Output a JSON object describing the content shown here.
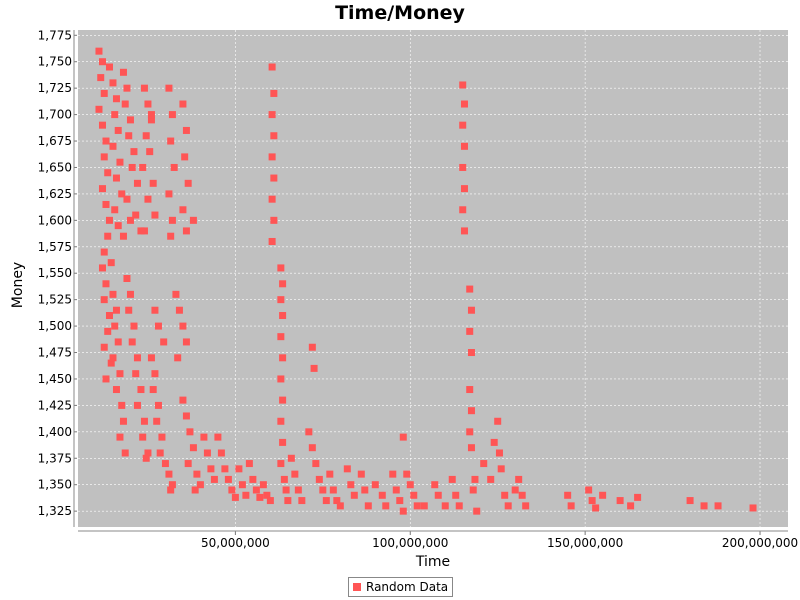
{
  "chart_data": {
    "type": "scatter",
    "title": "Time/Money",
    "xlabel": "Time",
    "ylabel": "Money",
    "xlim": [
      5000000,
      208000000
    ],
    "ylim": [
      1310,
      1780
    ],
    "x_ticks": [
      50000000,
      100000000,
      150000000,
      200000000
    ],
    "x_tick_labels": [
      "50,000,000",
      "100,000,000",
      "150,000,000",
      "200,000,000"
    ],
    "y_ticks": [
      1325,
      1350,
      1375,
      1400,
      1425,
      1450,
      1475,
      1500,
      1525,
      1550,
      1575,
      1600,
      1625,
      1650,
      1675,
      1700,
      1725,
      1750,
      1775
    ],
    "y_tick_labels": [
      "1,325",
      "1,350",
      "1,375",
      "1,400",
      "1,425",
      "1,450",
      "1,475",
      "1,500",
      "1,525",
      "1,550",
      "1,575",
      "1,600",
      "1,625",
      "1,650",
      "1,675",
      "1,700",
      "1,725",
      "1,750",
      "1,775"
    ],
    "grid": true,
    "legend_position": "bottom-center",
    "plot_background": "#c0c0c0",
    "series": [
      {
        "name": "Random Data",
        "color": "#ff5555",
        "points": [
          [
            11000000,
            1760
          ],
          [
            12000000,
            1750
          ],
          [
            11500000,
            1735
          ],
          [
            12500000,
            1720
          ],
          [
            11000000,
            1705
          ],
          [
            12000000,
            1690
          ],
          [
            13000000,
            1675
          ],
          [
            12500000,
            1660
          ],
          [
            13500000,
            1645
          ],
          [
            12000000,
            1630
          ],
          [
            13000000,
            1615
          ],
          [
            14000000,
            1600
          ],
          [
            13500000,
            1585
          ],
          [
            12500000,
            1570
          ],
          [
            14500000,
            1560
          ],
          [
            14000000,
            1745
          ],
          [
            15000000,
            1730
          ],
          [
            16000000,
            1715
          ],
          [
            15500000,
            1700
          ],
          [
            16500000,
            1685
          ],
          [
            15000000,
            1670
          ],
          [
            17000000,
            1655
          ],
          [
            16000000,
            1640
          ],
          [
            17500000,
            1625
          ],
          [
            15500000,
            1610
          ],
          [
            16500000,
            1595
          ],
          [
            18000000,
            1585
          ],
          [
            18000000,
            1740
          ],
          [
            19000000,
            1725
          ],
          [
            18500000,
            1710
          ],
          [
            20000000,
            1695
          ],
          [
            19500000,
            1680
          ],
          [
            21000000,
            1665
          ],
          [
            20500000,
            1650
          ],
          [
            22000000,
            1635
          ],
          [
            19000000,
            1620
          ],
          [
            21500000,
            1605
          ],
          [
            23000000,
            1590
          ],
          [
            20000000,
            1600
          ],
          [
            24000000,
            1725
          ],
          [
            25000000,
            1710
          ],
          [
            26000000,
            1695
          ],
          [
            24500000,
            1680
          ],
          [
            25500000,
            1665
          ],
          [
            23500000,
            1650
          ],
          [
            26500000,
            1635
          ],
          [
            25000000,
            1620
          ],
          [
            27000000,
            1605
          ],
          [
            24000000,
            1590
          ],
          [
            26000000,
            1700
          ],
          [
            31000000,
            1725
          ],
          [
            32000000,
            1700
          ],
          [
            31500000,
            1675
          ],
          [
            32500000,
            1650
          ],
          [
            31000000,
            1625
          ],
          [
            32000000,
            1600
          ],
          [
            31500000,
            1585
          ],
          [
            35000000,
            1710
          ],
          [
            36000000,
            1685
          ],
          [
            35500000,
            1660
          ],
          [
            36500000,
            1635
          ],
          [
            35000000,
            1610
          ],
          [
            36000000,
            1590
          ],
          [
            38000000,
            1600
          ],
          [
            60500000,
            1745
          ],
          [
            61000000,
            1720
          ],
          [
            60500000,
            1700
          ],
          [
            61000000,
            1680
          ],
          [
            60500000,
            1660
          ],
          [
            61000000,
            1640
          ],
          [
            60500000,
            1620
          ],
          [
            61000000,
            1600
          ],
          [
            60500000,
            1580
          ],
          [
            115000000,
            1728
          ],
          [
            115500000,
            1710
          ],
          [
            115000000,
            1690
          ],
          [
            115500000,
            1670
          ],
          [
            115000000,
            1650
          ],
          [
            115500000,
            1630
          ],
          [
            115000000,
            1610
          ],
          [
            115500000,
            1590
          ],
          [
            12000000,
            1555
          ],
          [
            13000000,
            1540
          ],
          [
            12500000,
            1525
          ],
          [
            14000000,
            1510
          ],
          [
            13500000,
            1495
          ],
          [
            12500000,
            1480
          ],
          [
            14500000,
            1465
          ],
          [
            13000000,
            1450
          ],
          [
            15000000,
            1530
          ],
          [
            16000000,
            1515
          ],
          [
            15500000,
            1500
          ],
          [
            16500000,
            1485
          ],
          [
            15000000,
            1470
          ],
          [
            17000000,
            1455
          ],
          [
            16000000,
            1440
          ],
          [
            17500000,
            1425
          ],
          [
            18000000,
            1410
          ],
          [
            17000000,
            1395
          ],
          [
            18500000,
            1380
          ],
          [
            19000000,
            1545
          ],
          [
            20000000,
            1530
          ],
          [
            19500000,
            1515
          ],
          [
            21000000,
            1500
          ],
          [
            20500000,
            1485
          ],
          [
            22000000,
            1470
          ],
          [
            21500000,
            1455
          ],
          [
            23000000,
            1440
          ],
          [
            22000000,
            1425
          ],
          [
            24000000,
            1410
          ],
          [
            23500000,
            1395
          ],
          [
            25000000,
            1380
          ],
          [
            24500000,
            1375
          ],
          [
            26000000,
            1470
          ],
          [
            27000000,
            1455
          ],
          [
            26500000,
            1440
          ],
          [
            28000000,
            1425
          ],
          [
            27500000,
            1410
          ],
          [
            29000000,
            1395
          ],
          [
            28500000,
            1380
          ],
          [
            30000000,
            1370
          ],
          [
            31000000,
            1360
          ],
          [
            32000000,
            1350
          ],
          [
            31500000,
            1345
          ],
          [
            27000000,
            1515
          ],
          [
            28000000,
            1500
          ],
          [
            29500000,
            1485
          ],
          [
            33000000,
            1530
          ],
          [
            34000000,
            1515
          ],
          [
            35000000,
            1500
          ],
          [
            36000000,
            1485
          ],
          [
            33500000,
            1470
          ],
          [
            35000000,
            1430
          ],
          [
            36000000,
            1415
          ],
          [
            37000000,
            1400
          ],
          [
            38000000,
            1385
          ],
          [
            36500000,
            1370
          ],
          [
            39000000,
            1360
          ],
          [
            40000000,
            1350
          ],
          [
            38500000,
            1345
          ],
          [
            41000000,
            1395
          ],
          [
            42000000,
            1380
          ],
          [
            43000000,
            1365
          ],
          [
            44000000,
            1355
          ],
          [
            45000000,
            1395
          ],
          [
            46000000,
            1380
          ],
          [
            47000000,
            1365
          ],
          [
            48000000,
            1355
          ],
          [
            49000000,
            1345
          ],
          [
            50000000,
            1338
          ],
          [
            51000000,
            1365
          ],
          [
            52000000,
            1350
          ],
          [
            53000000,
            1340
          ],
          [
            54000000,
            1370
          ],
          [
            55000000,
            1355
          ],
          [
            56000000,
            1345
          ],
          [
            57000000,
            1338
          ],
          [
            58000000,
            1350
          ],
          [
            59000000,
            1340
          ],
          [
            60000000,
            1335
          ],
          [
            63000000,
            1555
          ],
          [
            63500000,
            1540
          ],
          [
            63000000,
            1525
          ],
          [
            63500000,
            1510
          ],
          [
            63000000,
            1490
          ],
          [
            63500000,
            1470
          ],
          [
            63000000,
            1450
          ],
          [
            63500000,
            1430
          ],
          [
            63000000,
            1410
          ],
          [
            63500000,
            1390
          ],
          [
            63000000,
            1370
          ],
          [
            64000000,
            1355
          ],
          [
            64500000,
            1345
          ],
          [
            65000000,
            1335
          ],
          [
            66000000,
            1375
          ],
          [
            67000000,
            1360
          ],
          [
            68000000,
            1345
          ],
          [
            69000000,
            1335
          ],
          [
            72000000,
            1480
          ],
          [
            72500000,
            1460
          ],
          [
            71000000,
            1400
          ],
          [
            72000000,
            1385
          ],
          [
            73000000,
            1370
          ],
          [
            74000000,
            1355
          ],
          [
            75000000,
            1345
          ],
          [
            76000000,
            1335
          ],
          [
            77000000,
            1360
          ],
          [
            78000000,
            1345
          ],
          [
            79000000,
            1335
          ],
          [
            80000000,
            1330
          ],
          [
            82000000,
            1365
          ],
          [
            83000000,
            1350
          ],
          [
            84000000,
            1340
          ],
          [
            86000000,
            1360
          ],
          [
            87000000,
            1345
          ],
          [
            88000000,
            1330
          ],
          [
            90000000,
            1350
          ],
          [
            92000000,
            1340
          ],
          [
            93000000,
            1330
          ],
          [
            95000000,
            1360
          ],
          [
            96000000,
            1345
          ],
          [
            97000000,
            1335
          ],
          [
            98000000,
            1325
          ],
          [
            99000000,
            1360
          ],
          [
            100000000,
            1350
          ],
          [
            101000000,
            1340
          ],
          [
            102000000,
            1330
          ],
          [
            98000000,
            1395
          ],
          [
            104000000,
            1330
          ],
          [
            107000000,
            1350
          ],
          [
            108000000,
            1340
          ],
          [
            110000000,
            1330
          ],
          [
            112000000,
            1355
          ],
          [
            113000000,
            1340
          ],
          [
            114000000,
            1330
          ],
          [
            117000000,
            1535
          ],
          [
            117500000,
            1515
          ],
          [
            117000000,
            1495
          ],
          [
            117500000,
            1475
          ],
          [
            117000000,
            1440
          ],
          [
            117500000,
            1420
          ],
          [
            117000000,
            1400
          ],
          [
            117500000,
            1385
          ],
          [
            118500000,
            1355
          ],
          [
            119000000,
            1325
          ],
          [
            118000000,
            1345
          ],
          [
            121000000,
            1370
          ],
          [
            123000000,
            1355
          ],
          [
            124000000,
            1390
          ],
          [
            125000000,
            1410
          ],
          [
            125500000,
            1380
          ],
          [
            126000000,
            1365
          ],
          [
            127000000,
            1340
          ],
          [
            128000000,
            1330
          ],
          [
            130000000,
            1345
          ],
          [
            131000000,
            1355
          ],
          [
            132000000,
            1340
          ],
          [
            133000000,
            1330
          ],
          [
            145000000,
            1340
          ],
          [
            146000000,
            1330
          ],
          [
            151000000,
            1345
          ],
          [
            152000000,
            1335
          ],
          [
            153000000,
            1328
          ],
          [
            155000000,
            1340
          ],
          [
            160000000,
            1335
          ],
          [
            163000000,
            1330
          ],
          [
            165000000,
            1338
          ],
          [
            180000000,
            1335
          ],
          [
            184000000,
            1330
          ],
          [
            188000000,
            1330
          ],
          [
            198000000,
            1328
          ]
        ]
      }
    ]
  }
}
